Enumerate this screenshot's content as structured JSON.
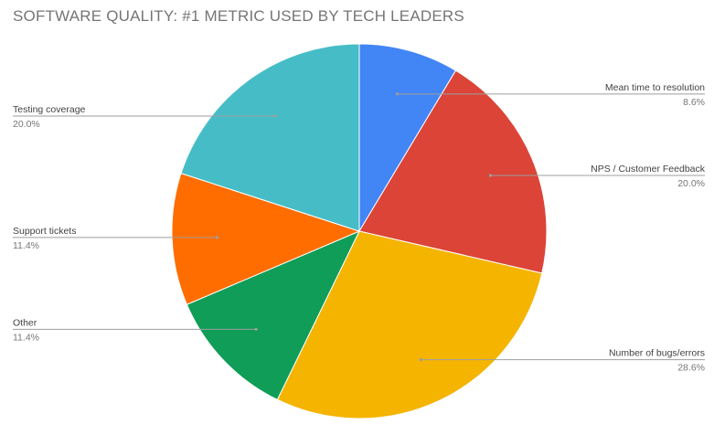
{
  "chart_data": {
    "type": "pie",
    "title": "SOFTWARE QUALITY: #1 METRIC USED BY TECH LEADERS",
    "slices": [
      {
        "label": "Mean time to resolution",
        "value": 8.6,
        "display": "8.6%",
        "color": "#4285F4",
        "label_side": "right"
      },
      {
        "label": "NPS / Customer Feedback",
        "value": 20.0,
        "display": "20.0%",
        "color": "#DB4437",
        "label_side": "right"
      },
      {
        "label": "Number of bugs/errors",
        "value": 28.6,
        "display": "28.6%",
        "color": "#F4B400",
        "label_side": "right"
      },
      {
        "label": "Other",
        "value": 11.4,
        "display": "11.4%",
        "color": "#0F9D58",
        "label_side": "left"
      },
      {
        "label": "Support tickets",
        "value": 11.4,
        "display": "11.4%",
        "color": "#FF6D00",
        "label_side": "left"
      },
      {
        "label": "Testing coverage",
        "value": 20.0,
        "display": "20.0%",
        "color": "#46BDC6",
        "label_side": "left"
      }
    ],
    "legend": "labels beside slices"
  }
}
